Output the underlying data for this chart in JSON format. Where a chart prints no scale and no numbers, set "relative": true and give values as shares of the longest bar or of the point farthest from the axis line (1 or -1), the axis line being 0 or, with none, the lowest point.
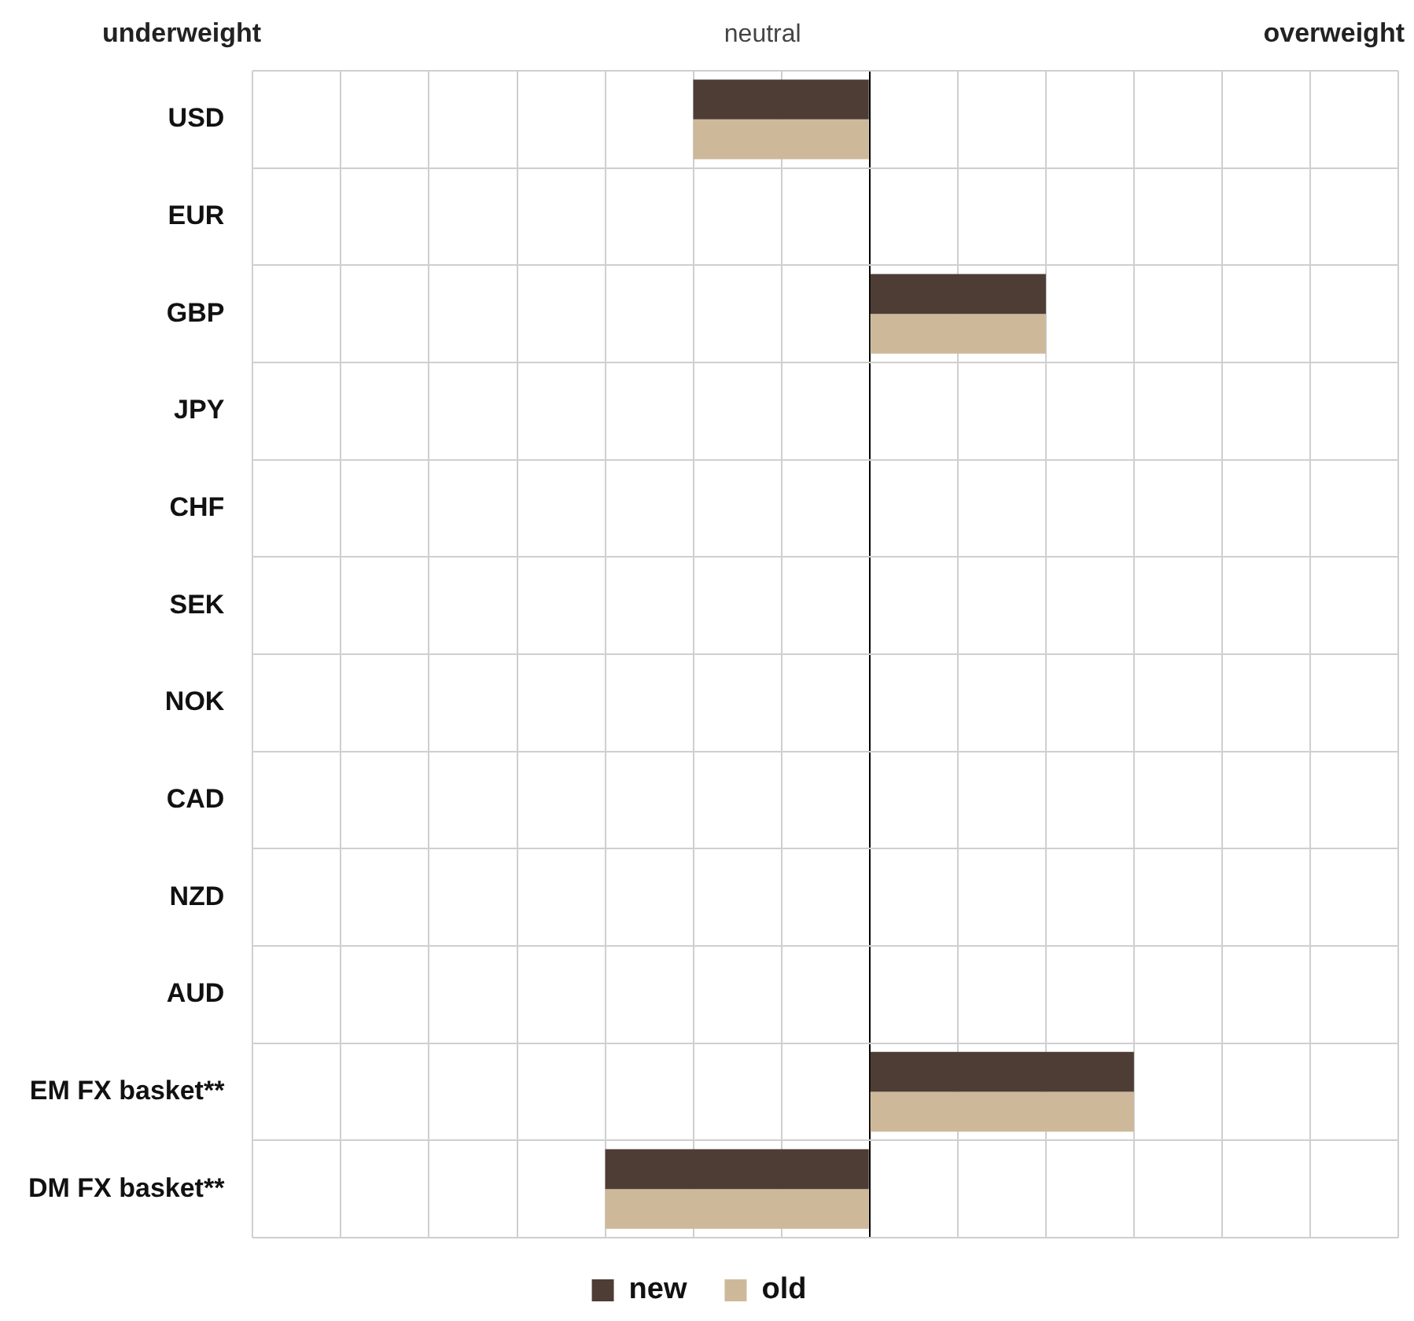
{
  "chart_data": {
    "type": "bar",
    "orientation": "horizontal",
    "relative": true,
    "grid": true,
    "legend": "bottom",
    "categories": [
      "USD",
      "EUR",
      "GBP",
      "JPY",
      "CHF",
      "SEK",
      "NOK",
      "CAD",
      "NZD",
      "AUD",
      "EM FX basket**",
      "DM FX basket**"
    ],
    "series": [
      {
        "name": "new",
        "color": "#4e3d34",
        "values": [
          -0.667,
          null,
          0.667,
          null,
          null,
          null,
          null,
          null,
          null,
          null,
          1,
          -1
        ]
      },
      {
        "name": "old",
        "color": "#cdb99a",
        "values": [
          -0.667,
          null,
          0.667,
          null,
          null,
          null,
          null,
          null,
          null,
          null,
          1,
          -1
        ]
      }
    ],
    "annotations": [
      "underweight",
      "neutral",
      "overweight"
    ]
  }
}
